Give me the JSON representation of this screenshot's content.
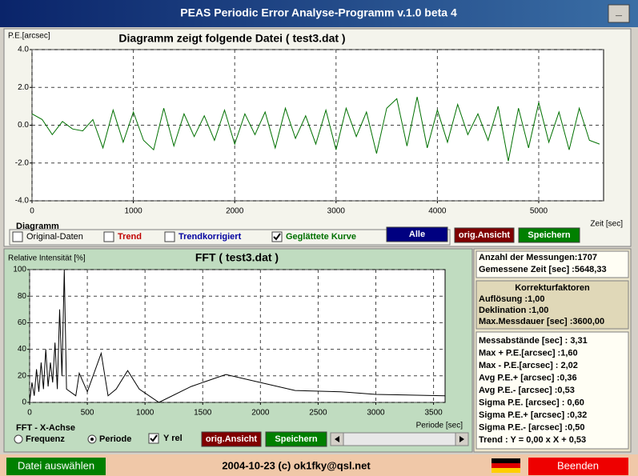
{
  "window": {
    "title": "PEAS Periodic Error Analyse-Programm v.1.0 beta 4",
    "minimize": "_"
  },
  "chart_data": [
    {
      "type": "line",
      "title": "Diagramm zeigt folgende Datei ( test3.dat )",
      "y_label": "P.E.[arcsec]",
      "x_label": "Zeit [sec]",
      "x": [
        0,
        100,
        200,
        300,
        400,
        500,
        600,
        700,
        800,
        900,
        1000,
        1100,
        1200,
        1300,
        1400,
        1500,
        1600,
        1700,
        1800,
        1900,
        2000,
        2100,
        2200,
        2300,
        2400,
        2500,
        2600,
        2700,
        2800,
        2900,
        3000,
        3100,
        3200,
        3300,
        3400,
        3500,
        3600,
        3700,
        3800,
        3900,
        4000,
        4100,
        4200,
        4300,
        4400,
        4500,
        4600,
        4700,
        4800,
        4900,
        5000,
        5100,
        5200,
        5300,
        5400,
        5500,
        5600
      ],
      "values": [
        0.6,
        0.3,
        -0.5,
        0.2,
        -0.2,
        -0.3,
        0.3,
        -1.2,
        0.8,
        -0.9,
        0.7,
        -0.8,
        -1.3,
        0.9,
        -1.1,
        0.6,
        -0.6,
        0.5,
        -0.8,
        0.8,
        -1.0,
        0.6,
        -0.5,
        0.7,
        -1.2,
        0.9,
        -0.7,
        0.5,
        -1.0,
        0.8,
        -1.3,
        0.9,
        -0.6,
        0.7,
        -1.5,
        0.9,
        1.4,
        -1.1,
        1.5,
        -1.2,
        0.8,
        -0.9,
        1.1,
        -0.5,
        0.6,
        -0.8,
        1.0,
        -1.9,
        0.9,
        -1.2,
        1.2,
        -0.9,
        0.7,
        -1.3,
        0.9,
        -0.8,
        -1.0
      ],
      "color": "#007000",
      "xlim": [
        0,
        5640
      ],
      "ylim": [
        -4,
        4
      ],
      "xticks": [
        0,
        1000,
        2000,
        3000,
        4000,
        5000
      ],
      "yticks": [
        {
          "value": 4,
          "label": "4.0"
        },
        {
          "value": 2,
          "label": "2.0"
        },
        {
          "value": 0,
          "label": "0.0"
        },
        {
          "value": -2,
          "label": "-2.0"
        },
        {
          "value": -4,
          "label": "-4.0"
        }
      ],
      "grid": true
    },
    {
      "type": "line",
      "title": "FFT ( test3.dat )",
      "y_label": "Relative Intensität [%]",
      "x_label": "Periode [sec]",
      "x": [
        0,
        20,
        40,
        60,
        80,
        100,
        120,
        140,
        160,
        180,
        200,
        220,
        240,
        260,
        280,
        300,
        320,
        400,
        430,
        500,
        620,
        680,
        750,
        850,
        950,
        1120,
        1400,
        1700,
        2000,
        2300,
        2700,
        3000,
        3600
      ],
      "values": [
        0,
        15,
        5,
        25,
        8,
        30,
        10,
        40,
        12,
        30,
        15,
        45,
        10,
        70,
        20,
        100,
        10,
        5,
        22,
        8,
        37,
        5,
        10,
        24,
        10,
        0,
        12,
        21,
        15,
        9,
        8,
        6,
        5
      ],
      "color": "#000000",
      "xlim": [
        0,
        3600
      ],
      "ylim": [
        0,
        100
      ],
      "xticks": [
        0,
        500,
        1000,
        1500,
        2000,
        2500,
        3000,
        3500
      ],
      "yticks": [
        0,
        20,
        40,
        60,
        80,
        100
      ],
      "grid": true
    }
  ],
  "diagram_controls": {
    "label": "Diagramm",
    "checkboxes": [
      {
        "label": "Original-Daten",
        "checked": false,
        "color": "#000000"
      },
      {
        "label": "Trend",
        "checked": false,
        "color": "#c00000"
      },
      {
        "label": "Trendkorrigiert",
        "checked": false,
        "color": "#0000a0"
      },
      {
        "label": "Geglättete Kurve",
        "checked": true,
        "color": "#007000"
      }
    ],
    "buttons": [
      "Alle",
      "orig.Ansicht",
      "Speichern"
    ]
  },
  "fft_controls": {
    "label": "FFT - X-Achse",
    "radios": [
      {
        "label": "Frequenz",
        "selected": false
      },
      {
        "label": "Periode",
        "selected": true
      }
    ],
    "checkbox": {
      "label": "Y rel",
      "checked": true
    },
    "buttons": [
      "orig.Ansicht",
      "Speichern"
    ]
  },
  "info": {
    "measurement": [
      "Anzahl der Messungen:1707",
      "Gemessene Zeit [sec] :5648,33"
    ],
    "corrections": {
      "title": "Korrekturfaktoren",
      "lines": [
        "Auflösung :1,00",
        "Deklination :1,00",
        "Max.Messdauer [sec] :3600,00"
      ]
    },
    "statistics": [
      "Messabstände [sec] : 3,31",
      "Max + P.E.[arcsec] :1,60",
      "Max - P.E.[arcsec] : 2,02",
      "Avg P.E.+ [arcsec] :0,36",
      "Avg P.E.- [arcsec] :0,53",
      "Sigma P.E. [arcsec] : 0,60",
      "Sigma P.E.+ [arcsec] :0,32",
      "Sigma P.E.- [arcsec] :0,50",
      "Trend : Y = 0,00 x X + 0,53"
    ]
  },
  "footer": {
    "open_button": "Datei auswählen",
    "copyright": "2004-10-23 (c) ok1fky@qsl.net",
    "exit_button": "Beenden"
  }
}
